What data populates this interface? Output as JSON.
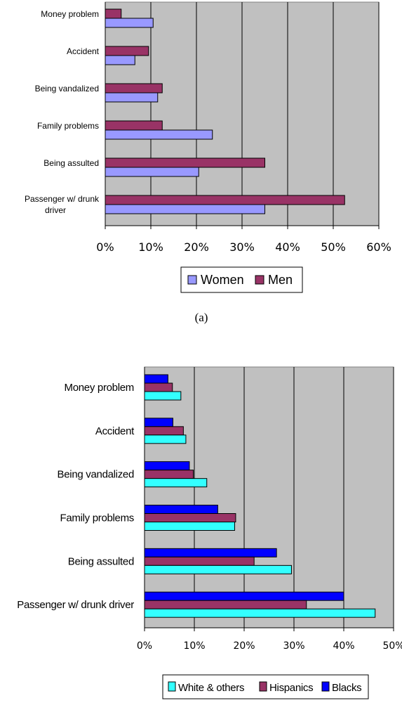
{
  "colors": {
    "women": "#9999ff",
    "men": "#993366",
    "white": "#33ffff",
    "hispanics": "#993366",
    "blacks": "#0000ff",
    "plot_bg": "#c0c0c0",
    "grid": "#000000"
  },
  "caption_a": "(a)",
  "chart_data": [
    {
      "type": "bar",
      "orientation": "horizontal",
      "categories": [
        "Money problem",
        "Accident",
        "Being vandalized",
        "Family problems",
        "Being assulted",
        "Passenger w/ drunk driver"
      ],
      "series": [
        {
          "name": "Men",
          "values": [
            3.5,
            9.5,
            12.5,
            12.5,
            35,
            52.5
          ]
        },
        {
          "name": "Women",
          "values": [
            10.5,
            6.5,
            11.5,
            23.5,
            20.5,
            35
          ]
        }
      ],
      "xlim": [
        0,
        60
      ],
      "xticks": [
        "0%",
        "10%",
        "20%",
        "30%",
        "40%",
        "50%",
        "60%"
      ],
      "legend": [
        "Women",
        "Men"
      ],
      "legend_position": "bottom",
      "grid": true
    },
    {
      "type": "bar",
      "orientation": "horizontal",
      "categories": [
        "Money problem",
        "Accident",
        "Being vandalized",
        "Family problems",
        "Being assulted",
        "Passenger w/ drunk driver"
      ],
      "series": [
        {
          "name": "Blacks",
          "values": [
            4.7,
            5.7,
            9,
            14.7,
            26.5,
            40
          ]
        },
        {
          "name": "Hispanics",
          "values": [
            5.6,
            7.8,
            9.8,
            18.3,
            22,
            32.5
          ]
        },
        {
          "name": "White & others",
          "values": [
            7.3,
            8.3,
            12.5,
            18.1,
            29.5,
            46.3
          ]
        }
      ],
      "xlim": [
        0,
        50
      ],
      "xticks": [
        "0%",
        "10%",
        "20%",
        "30%",
        "40%",
        "50%"
      ],
      "legend": [
        "White & others",
        "Hispanics",
        "Blacks"
      ],
      "legend_position": "bottom",
      "grid": true
    }
  ]
}
